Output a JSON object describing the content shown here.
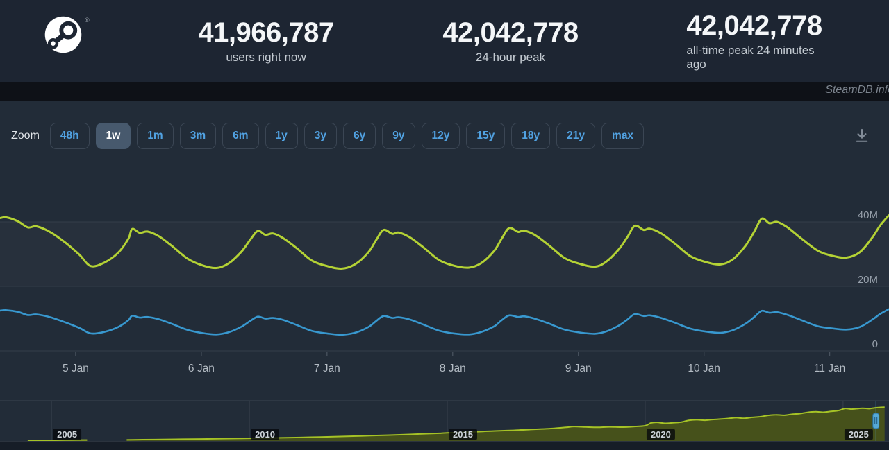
{
  "header": {
    "registered_mark": "®",
    "stats": [
      {
        "value": "41,966,787",
        "label": "users right now"
      },
      {
        "value": "42,042,778",
        "label": "24-hour peak"
      },
      {
        "value": "42,042,778",
        "label": "all-time peak 24 minutes ago"
      }
    ]
  },
  "watermark": "SteamDB.info",
  "toolbar": {
    "zoom_label": "Zoom",
    "active_range": "1w",
    "ranges": [
      "48h",
      "1w",
      "1m",
      "3m",
      "6m",
      "1y",
      "3y",
      "6y",
      "9y",
      "12y",
      "15y",
      "18y",
      "21y",
      "max"
    ]
  },
  "chart_data": {
    "type": "line",
    "grid": "horizontal",
    "legend_position": "none",
    "y_axis": {
      "range_millions": [
        0,
        59
      ],
      "ticks": [
        {
          "value": 40,
          "label": "40M"
        },
        {
          "value": 20,
          "label": "20M"
        },
        {
          "value": 0,
          "label": "0"
        }
      ]
    },
    "x_axis": {
      "range_days": [
        0.398,
        7.472
      ],
      "ticks": [
        {
          "t": 1,
          "label": "5 Jan"
        },
        {
          "t": 2,
          "label": "6 Jan"
        },
        {
          "t": 3,
          "label": "7 Jan"
        },
        {
          "t": 4,
          "label": "8 Jan"
        },
        {
          "t": 5,
          "label": "9 Jan"
        },
        {
          "t": 6,
          "label": "10 Jan"
        },
        {
          "t": 7,
          "label": "11 Jan"
        }
      ]
    },
    "t_days": [
      0.4,
      0.45,
      0.54,
      0.62,
      0.69,
      0.8,
      0.92,
      1.03,
      1.12,
      1.23,
      1.34,
      1.42,
      1.45,
      1.51,
      1.57,
      1.66,
      1.77,
      1.89,
      2.01,
      2.12,
      2.22,
      2.32,
      2.39,
      2.45,
      2.51,
      2.57,
      2.65,
      2.76,
      2.88,
      3.0,
      3.12,
      3.23,
      3.33,
      3.39,
      3.45,
      3.52,
      3.57,
      3.66,
      3.77,
      3.89,
      4.01,
      4.13,
      4.23,
      4.33,
      4.39,
      4.45,
      4.52,
      4.57,
      4.66,
      4.77,
      4.89,
      5.01,
      5.13,
      5.22,
      5.32,
      5.39,
      5.45,
      5.52,
      5.57,
      5.66,
      5.77,
      5.89,
      6.01,
      6.13,
      6.23,
      6.33,
      6.4,
      6.46,
      6.52,
      6.58,
      6.66,
      6.77,
      6.9,
      7.01,
      7.13,
      7.24,
      7.34,
      7.4,
      7.47
    ],
    "series": [
      {
        "name": "users-online",
        "color": "#b4d235",
        "values_millions": [
          41.2,
          41.4,
          40.2,
          38.3,
          38.6,
          36.8,
          33.5,
          29.8,
          26.3,
          27.4,
          30.5,
          34.8,
          37.8,
          36.6,
          37.0,
          35.6,
          32.4,
          28.6,
          26.5,
          25.7,
          27.2,
          30.8,
          34.5,
          37.2,
          36.0,
          36.4,
          35.0,
          31.8,
          28.0,
          26.3,
          25.5,
          27.0,
          30.6,
          34.3,
          37.5,
          36.3,
          36.7,
          35.2,
          32.0,
          28.2,
          26.4,
          25.8,
          27.3,
          31.0,
          34.8,
          38.1,
          36.9,
          37.3,
          35.8,
          32.6,
          28.8,
          27.0,
          26.1,
          27.6,
          31.4,
          35.3,
          38.8,
          37.5,
          37.9,
          36.4,
          33.2,
          29.4,
          27.6,
          26.8,
          28.4,
          32.6,
          37.0,
          41.0,
          39.6,
          40.0,
          38.4,
          35.0,
          31.2,
          29.6,
          28.9,
          30.6,
          35.2,
          38.8,
          42.0
        ]
      },
      {
        "name": "in-game",
        "color": "#3898cf",
        "values_millions": [
          12.5,
          12.6,
          12.1,
          11.1,
          11.3,
          10.4,
          8.8,
          7.1,
          5.4,
          5.9,
          7.4,
          9.5,
          10.9,
          10.3,
          10.5,
          9.8,
          8.3,
          6.5,
          5.5,
          5.1,
          5.8,
          7.5,
          9.3,
          10.6,
          10.0,
          10.2,
          9.6,
          8.0,
          6.2,
          5.4,
          5.0,
          5.7,
          7.4,
          9.2,
          10.8,
          10.2,
          10.4,
          9.7,
          8.1,
          6.3,
          5.4,
          5.1,
          5.9,
          7.6,
          9.5,
          11.0,
          10.5,
          10.7,
          9.9,
          8.4,
          6.6,
          5.7,
          5.3,
          6.0,
          7.8,
          9.7,
          11.4,
          10.8,
          11.0,
          10.2,
          8.7,
          6.9,
          6.0,
          5.6,
          6.4,
          8.4,
          10.5,
          12.4,
          11.8,
          12.0,
          11.2,
          9.6,
          7.7,
          7.0,
          6.6,
          7.4,
          9.7,
          11.4,
          12.9
        ]
      }
    ],
    "navigator": {
      "year_range": [
        2003.7,
        2026.16
      ],
      "value_range_millions": [
        0,
        50
      ],
      "line_color": "#a6c326",
      "fill_color": "#46511b",
      "selection_start_year": 2025.83,
      "year_ticks": [
        {
          "year": 2005,
          "label": "2005"
        },
        {
          "year": 2010,
          "label": "2010"
        },
        {
          "year": 2015,
          "label": "2015"
        },
        {
          "year": 2020,
          "label": "2020"
        },
        {
          "year": 2025,
          "label": "2025"
        }
      ],
      "segments": [
        [
          [
            2004.4,
            0.5
          ],
          [
            2004.75,
            0.6
          ],
          [
            2005.1,
            0.9
          ],
          [
            2005.5,
            1.1
          ],
          [
            2005.9,
            1.2
          ]
        ],
        [
          [
            2006.9,
            1.4
          ],
          [
            2007.3,
            1.7
          ],
          [
            2007.8,
            1.9
          ],
          [
            2008.3,
            2.2
          ],
          [
            2008.8,
            2.5
          ],
          [
            2009.3,
            2.9
          ],
          [
            2009.8,
            3.2
          ],
          [
            2010.3,
            3.6
          ],
          [
            2010.8,
            4.0
          ],
          [
            2011.3,
            4.4
          ],
          [
            2011.8,
            5.0
          ],
          [
            2012.3,
            5.6
          ],
          [
            2012.8,
            6.3
          ],
          [
            2013.3,
            7.0
          ],
          [
            2013.8,
            7.8
          ],
          [
            2014.3,
            8.7
          ],
          [
            2014.8,
            9.6
          ],
          [
            2015.0,
            10.1
          ],
          [
            2015.3,
            10.7
          ],
          [
            2015.6,
            11.2
          ],
          [
            2015.9,
            11.9
          ],
          [
            2016.2,
            12.5
          ],
          [
            2016.5,
            13.0
          ],
          [
            2016.8,
            13.6
          ],
          [
            2017.1,
            14.3
          ],
          [
            2017.4,
            15.0
          ],
          [
            2017.7,
            15.8
          ],
          [
            2018.0,
            17.0
          ],
          [
            2018.2,
            18.0
          ],
          [
            2018.5,
            17.4
          ],
          [
            2018.8,
            17.0
          ],
          [
            2019.1,
            17.6
          ],
          [
            2019.4,
            17.2
          ],
          [
            2019.7,
            17.9
          ],
          [
            2020.0,
            19.0
          ],
          [
            2020.15,
            22.5
          ],
          [
            2020.3,
            23.2
          ],
          [
            2020.5,
            22.0
          ],
          [
            2020.7,
            22.6
          ],
          [
            2020.9,
            23.4
          ],
          [
            2021.1,
            25.6
          ],
          [
            2021.3,
            26.4
          ],
          [
            2021.5,
            25.8
          ],
          [
            2021.7,
            26.6
          ],
          [
            2021.9,
            27.2
          ],
          [
            2022.1,
            28.0
          ],
          [
            2022.3,
            29.0
          ],
          [
            2022.5,
            28.2
          ],
          [
            2022.7,
            29.4
          ],
          [
            2022.9,
            30.2
          ],
          [
            2023.1,
            31.8
          ],
          [
            2023.3,
            32.6
          ],
          [
            2023.5,
            32.0
          ],
          [
            2023.7,
            33.2
          ],
          [
            2023.9,
            34.0
          ],
          [
            2024.1,
            35.6
          ],
          [
            2024.3,
            36.4
          ],
          [
            2024.5,
            35.8
          ],
          [
            2024.7,
            36.8
          ],
          [
            2024.9,
            38.0
          ],
          [
            2025.05,
            40.4
          ],
          [
            2025.2,
            39.6
          ],
          [
            2025.35,
            40.2
          ],
          [
            2025.5,
            40.8
          ],
          [
            2025.65,
            40.2
          ],
          [
            2025.8,
            41.2
          ],
          [
            2025.95,
            41.8
          ],
          [
            2026.05,
            42.0
          ]
        ]
      ]
    }
  },
  "colors": {
    "header_bg": "#1d2532",
    "body_bg": "#222c38",
    "users_online": "#b4d235",
    "in_game": "#3898cf",
    "link_blue": "#51a2e2",
    "handle_blue": "#55a9d6"
  }
}
